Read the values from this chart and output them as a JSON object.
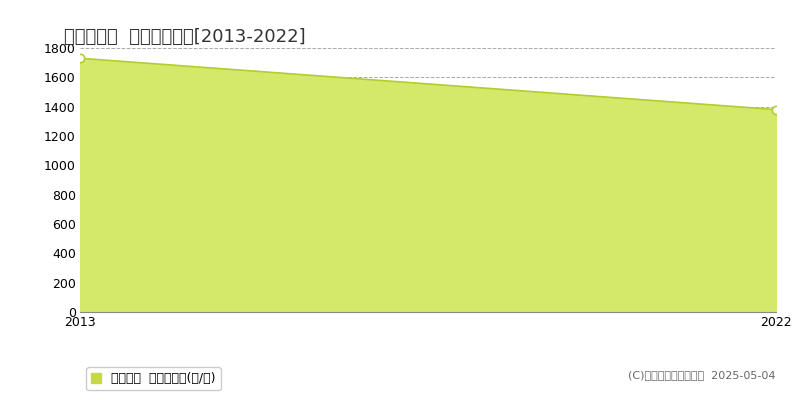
{
  "title": "大野市大月  農地価格推移[2013-2022]",
  "years": [
    2013,
    2022
  ],
  "values": [
    1730,
    1380
  ],
  "xlim": [
    2013,
    2022
  ],
  "ylim": [
    0,
    1800
  ],
  "yticks": [
    0,
    200,
    400,
    600,
    800,
    1000,
    1200,
    1400,
    1600,
    1800
  ],
  "xticks": [
    2013,
    2022
  ],
  "line_color": "#b5cc2e",
  "fill_color": "#d4e86a",
  "fill_alpha": 1.0,
  "marker_color": "#b5cc2e",
  "marker_face": "white",
  "marker_size": 6,
  "grid_color": "#aaaaaa",
  "bg_color": "#ffffff",
  "legend_label": "農地価格  平均坪単価(円/坪)",
  "legend_color": "#c8d840",
  "copyright_text": "(C)土地価格ドットコム  2025-05-04",
  "title_fontsize": 13,
  "axis_fontsize": 9,
  "legend_fontsize": 9,
  "copyright_fontsize": 8
}
